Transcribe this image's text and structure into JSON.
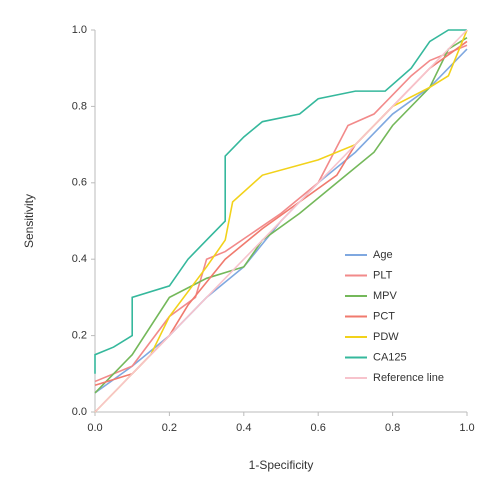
{
  "chart_data": {
    "type": "line",
    "x_label": "1-Specificity",
    "y_label": "Sensitivity",
    "xlim": [
      0,
      1
    ],
    "ylim": [
      0,
      1
    ],
    "xticks": [
      {
        "value": 0,
        "label": "0.0"
      },
      0.2,
      0.4,
      0.6,
      0.8,
      {
        "value": 1,
        "label": "1.0"
      }
    ],
    "yticks": [
      {
        "value": 0,
        "label": "0.0"
      },
      0.2,
      0.4,
      0.6,
      0.8,
      {
        "value": 1,
        "label": "1.0"
      }
    ],
    "legend": "lower right",
    "series": [
      {
        "name": "Age",
        "color": "#7fa8e0",
        "x": [
          0,
          0.1,
          0.2,
          0.3,
          0.4,
          0.5,
          0.6,
          0.7,
          0.8,
          0.9,
          1
        ],
        "values": [
          0.05,
          0.12,
          0.2,
          0.3,
          0.38,
          0.5,
          0.6,
          0.68,
          0.78,
          0.85,
          0.95
        ]
      },
      {
        "name": "PLT",
        "color": "#f28a8a",
        "x": [
          0,
          0.1,
          0.2,
          0.27,
          0.3,
          0.35,
          0.5,
          0.6,
          0.68,
          0.75,
          0.82,
          0.85,
          0.9,
          1
        ],
        "values": [
          0.08,
          0.12,
          0.25,
          0.3,
          0.4,
          0.42,
          0.52,
          0.6,
          0.75,
          0.78,
          0.85,
          0.88,
          0.92,
          0.96
        ]
      },
      {
        "name": "MPV",
        "color": "#74b85a",
        "x": [
          0,
          0.1,
          0.2,
          0.3,
          0.4,
          0.45,
          0.55,
          0.65,
          0.75,
          0.8,
          0.9,
          0.95,
          1
        ],
        "values": [
          0.05,
          0.15,
          0.3,
          0.35,
          0.38,
          0.45,
          0.52,
          0.6,
          0.68,
          0.75,
          0.85,
          0.95,
          0.98
        ]
      },
      {
        "name": "PCT",
        "color": "#f07a6e",
        "x": [
          0,
          0.1,
          0.2,
          0.25,
          0.35,
          0.45,
          0.55,
          0.65,
          0.7,
          0.8,
          0.9,
          1
        ],
        "values": [
          0.07,
          0.1,
          0.2,
          0.28,
          0.4,
          0.48,
          0.55,
          0.62,
          0.7,
          0.8,
          0.9,
          0.97
        ]
      },
      {
        "name": "PDW",
        "color": "#f2d21a",
        "x": [
          0,
          0.05,
          0.15,
          0.2,
          0.3,
          0.35,
          0.37,
          0.45,
          0.6,
          0.7,
          0.8,
          0.9,
          0.95,
          1
        ],
        "values": [
          0,
          0.05,
          0.15,
          0.25,
          0.38,
          0.45,
          0.55,
          0.62,
          0.66,
          0.7,
          0.8,
          0.85,
          0.88,
          1
        ]
      },
      {
        "name": "CA125",
        "color": "#35b89c",
        "x": [
          0,
          0,
          0.05,
          0.1,
          0.1,
          0.2,
          0.25,
          0.3,
          0.35,
          0.35,
          0.4,
          0.45,
          0.55,
          0.6,
          0.7,
          0.78,
          0.85,
          0.9,
          0.95,
          1
        ],
        "values": [
          0.1,
          0.15,
          0.17,
          0.2,
          0.3,
          0.33,
          0.4,
          0.45,
          0.5,
          0.67,
          0.72,
          0.76,
          0.78,
          0.82,
          0.84,
          0.84,
          0.9,
          0.97,
          1,
          1
        ]
      },
      {
        "name": "Reference line",
        "color": "#f7c3cc",
        "x": [
          0,
          1
        ],
        "values": [
          0,
          1
        ]
      }
    ]
  }
}
